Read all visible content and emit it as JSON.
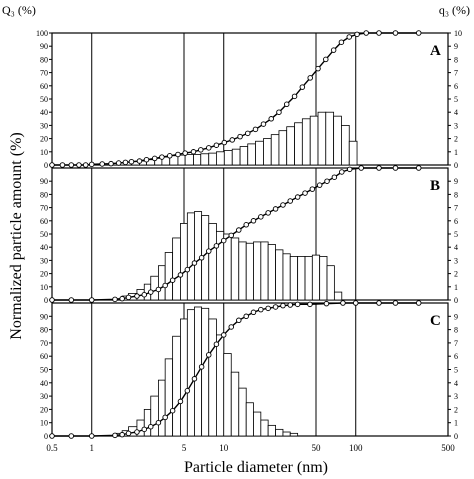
{
  "figure": {
    "left_axis_title": "Q₃ (%)",
    "right_axis_title": "q₃ (%)",
    "ylabel": "Normalized particle amount (%)",
    "xlabel": "Particle diameter (nm)",
    "x_ticks": [
      "0.5",
      "1",
      "5",
      "10",
      "50",
      "100",
      "500"
    ]
  },
  "chart_data": [
    {
      "type": "bar+line",
      "panel": "A",
      "xscale": "log",
      "xlim": [
        0.5,
        500
      ],
      "ylim": [
        0,
        100
      ],
      "left_ticks": [
        "0",
        "10",
        "20",
        "30",
        "40",
        "50",
        "60",
        "70",
        "80",
        "90",
        "100"
      ],
      "right_ticks": [
        "0",
        "1",
        "2",
        "3",
        "4",
        "5",
        "6",
        "7",
        "8",
        "9",
        "10"
      ],
      "bar_edges": [
        1.0,
        1.2,
        1.4,
        1.6,
        1.8,
        2.0,
        2.3,
        2.6,
        3.0,
        3.4,
        3.9,
        4.5,
        5.1,
        5.9,
        6.7,
        7.7,
        8.8,
        10.1,
        11.6,
        13.3,
        15.2,
        17.4,
        20.0,
        22.9,
        26.2,
        30.0,
        34.4,
        39.4,
        45.2,
        51.8,
        59.3,
        68.0,
        77.9,
        89.3,
        102.3
      ],
      "bar_values": [
        0.5,
        0.8,
        1,
        1.5,
        2,
        2.5,
        3,
        4,
        5,
        6,
        7,
        7.5,
        8,
        8,
        8.5,
        9,
        10,
        11,
        12,
        14,
        16,
        18,
        20,
        23,
        26,
        29,
        32,
        35,
        37,
        40,
        40,
        37,
        30,
        18,
        5
      ],
      "cumulative": {
        "x": [
          0.5,
          0.6,
          0.7,
          0.8,
          0.9,
          1,
          1.2,
          1.4,
          1.6,
          1.8,
          2,
          2.3,
          2.6,
          3,
          3.4,
          3.9,
          4.5,
          5.1,
          5.9,
          6.7,
          7.7,
          8.8,
          10.1,
          11.6,
          13.3,
          15.2,
          17.4,
          20,
          22.9,
          26.2,
          30,
          34.4,
          39.4,
          45.2,
          51.8,
          59.3,
          68,
          77.9,
          89.3,
          102.3,
          120,
          150,
          200,
          300
        ],
        "y": [
          0,
          0,
          0,
          0,
          0,
          0.5,
          0.8,
          1,
          1.5,
          2,
          2.5,
          3,
          4,
          5,
          6,
          7,
          8,
          9,
          10,
          11.5,
          13,
          15,
          17,
          19,
          21.5,
          24,
          27,
          31,
          35,
          40,
          46,
          52,
          59,
          66,
          73,
          80,
          87,
          93,
          97,
          99,
          100,
          100,
          100,
          100
        ]
      }
    },
    {
      "type": "bar+line",
      "panel": "B",
      "xscale": "log",
      "xlim": [
        0.5,
        500
      ],
      "ylim": [
        0,
        100
      ],
      "left_ticks": [
        "0",
        "10",
        "20",
        "30",
        "40",
        "50",
        "60",
        "70",
        "80",
        "90"
      ],
      "right_ticks": [
        "0",
        "1",
        "2",
        "3",
        "4",
        "5",
        "6",
        "7",
        "8",
        "9"
      ],
      "bar_edges": [
        1.5,
        1.7,
        1.9,
        2.2,
        2.5,
        2.8,
        3.2,
        3.6,
        4.1,
        4.7,
        5.3,
        6.0,
        6.8,
        7.7,
        8.8,
        10.0,
        11.4,
        13.0,
        14.8,
        16.8,
        19.1,
        21.7,
        24.7,
        28.1,
        31.9,
        36.3,
        41.3,
        46.9,
        53.3,
        60.6,
        68.9,
        78.4
      ],
      "bar_values": [
        1,
        3,
        5,
        8,
        12,
        18,
        26,
        36,
        47,
        58,
        66,
        67,
        64,
        58,
        52,
        50,
        47,
        44,
        43,
        44,
        44,
        42,
        38,
        35,
        33,
        33,
        33,
        34,
        33,
        26,
        6
      ],
      "cumulative": {
        "x": [
          0.5,
          0.7,
          1,
          1.5,
          1.7,
          1.9,
          2.2,
          2.5,
          2.8,
          3.2,
          3.6,
          4.1,
          4.7,
          5.3,
          6,
          6.8,
          7.7,
          8.8,
          10,
          11.4,
          13,
          14.8,
          16.8,
          19.1,
          21.7,
          24.7,
          28.1,
          31.9,
          36.3,
          41.3,
          46.9,
          53.3,
          60.6,
          68.9,
          78.4,
          90,
          110,
          150,
          200,
          300
        ],
        "y": [
          0,
          0,
          0,
          0.5,
          1,
          2,
          3,
          4,
          6,
          8,
          11,
          15,
          19,
          23,
          28,
          32,
          37,
          41,
          45,
          49,
          53,
          57,
          60,
          63,
          66,
          69,
          72,
          75,
          78,
          81,
          84,
          87,
          90,
          93,
          97,
          99,
          100,
          100,
          100,
          100
        ]
      }
    },
    {
      "type": "bar+line",
      "panel": "C",
      "xscale": "log",
      "xlim": [
        0.5,
        500
      ],
      "ylim": [
        0,
        100
      ],
      "left_ticks": [
        "0",
        "10",
        "20",
        "30",
        "40",
        "50",
        "60",
        "70",
        "80",
        "90"
      ],
      "right_ticks": [
        "0",
        "1",
        "2",
        "3",
        "4",
        "5",
        "6",
        "7",
        "8",
        "9"
      ],
      "bar_edges": [
        1.5,
        1.7,
        1.9,
        2.2,
        2.5,
        2.8,
        3.2,
        3.6,
        4.1,
        4.7,
        5.3,
        6.0,
        6.8,
        7.7,
        8.8,
        10.0,
        11.4,
        13.0,
        14.8,
        16.8,
        19.1,
        21.7,
        24.7,
        28.1,
        31.9,
        36.3
      ],
      "bar_values": [
        2,
        4,
        7,
        12,
        20,
        30,
        42,
        58,
        75,
        88,
        95,
        97,
        96,
        88,
        76,
        62,
        48,
        36,
        25,
        18,
        12,
        8,
        5,
        3,
        2
      ],
      "cumulative": {
        "x": [
          0.5,
          0.7,
          1,
          1.5,
          1.7,
          1.9,
          2.2,
          2.5,
          2.8,
          3.2,
          3.6,
          4.1,
          4.7,
          5.3,
          6,
          6.8,
          7.7,
          8.8,
          10,
          11.4,
          13,
          14.8,
          16.8,
          19.1,
          21.7,
          24.7,
          28.1,
          31.9,
          36.3,
          45,
          60,
          80,
          100,
          150,
          200,
          300
        ],
        "y": [
          0,
          0,
          0,
          0.5,
          1,
          2,
          3,
          5,
          7,
          10,
          14,
          19,
          26,
          34,
          43,
          52,
          61,
          69,
          76,
          82,
          87,
          90,
          93,
          95,
          96,
          97,
          98,
          98.5,
          99,
          99,
          99.5,
          100,
          100,
          100,
          100,
          100
        ]
      }
    }
  ]
}
